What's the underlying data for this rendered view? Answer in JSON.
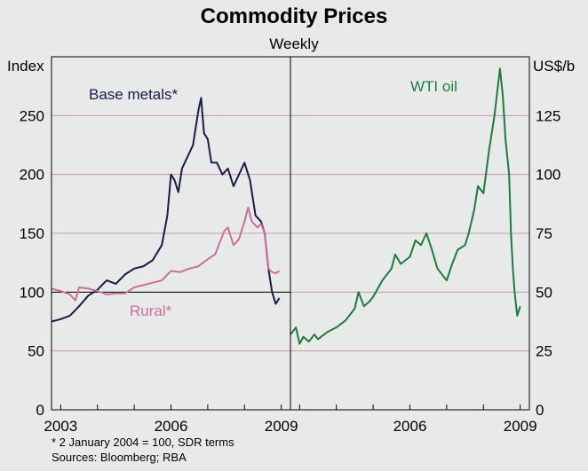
{
  "chart_data": {
    "type": "line",
    "title": "Commodity Prices",
    "subtitle": "Weekly",
    "panels": [
      {
        "name": "left",
        "y_axis_label": "Index",
        "ylim": [
          0,
          300
        ],
        "yticks": [
          0,
          50,
          100,
          150,
          200,
          250
        ],
        "x_ticks": [
          "2003",
          "2006",
          "2009"
        ],
        "xlim": [
          2002.75,
          2009.25
        ],
        "reference_line": 100,
        "series": [
          {
            "name": "Base metals*",
            "color": "#1c1a47",
            "x": [
              2002.75,
              2003.0,
              2003.25,
              2003.5,
              2003.75,
              2004.0,
              2004.25,
              2004.5,
              2004.75,
              2005.0,
              2005.25,
              2005.5,
              2005.75,
              2005.9,
              2006.0,
              2006.1,
              2006.2,
              2006.3,
              2006.45,
              2006.6,
              2006.75,
              2006.82,
              2006.9,
              2007.0,
              2007.1,
              2007.25,
              2007.4,
              2007.55,
              2007.7,
              2007.85,
              2008.0,
              2008.15,
              2008.3,
              2008.45,
              2008.55,
              2008.65,
              2008.75,
              2008.85,
              2008.95
            ],
            "values": [
              75,
              77,
              80,
              88,
              97,
              102,
              110,
              107,
              115,
              120,
              122,
              127,
              140,
              165,
              200,
              195,
              185,
              205,
              215,
              225,
              255,
              265,
              235,
              230,
              210,
              210,
              200,
              205,
              190,
              200,
              210,
              195,
              165,
              160,
              150,
              120,
              100,
              90,
              95
            ]
          },
          {
            "name": "Rural*",
            "color": "#c7729a",
            "x": [
              2002.75,
              2003.0,
              2003.25,
              2003.4,
              2003.5,
              2003.75,
              2004.0,
              2004.25,
              2004.5,
              2004.75,
              2005.0,
              2005.25,
              2005.5,
              2005.75,
              2006.0,
              2006.25,
              2006.5,
              2006.75,
              2007.0,
              2007.2,
              2007.3,
              2007.45,
              2007.55,
              2007.7,
              2007.85,
              2008.0,
              2008.1,
              2008.2,
              2008.35,
              2008.45,
              2008.55,
              2008.65,
              2008.75,
              2008.85,
              2008.95
            ],
            "values": [
              103,
              101,
              98,
              93,
              104,
              103,
              101,
              98,
              99,
              99,
              104,
              106,
              108,
              110,
              118,
              117,
              120,
              122,
              128,
              132,
              140,
              152,
              155,
              140,
              145,
              160,
              172,
              160,
              155,
              158,
              150,
              120,
              117,
              116,
              118
            ]
          }
        ],
        "annotations": [
          "Base metals*",
          "Rural*"
        ]
      },
      {
        "name": "right",
        "y_axis_label": "US$/b",
        "ylim": [
          0,
          150
        ],
        "yticks": [
          0,
          25,
          50,
          75,
          100,
          125
        ],
        "x_ticks": [
          "2006",
          "2009"
        ],
        "xlim": [
          2002.75,
          2009.25
        ],
        "series": [
          {
            "name": "WTI oil",
            "color": "#1f7b3d",
            "x": [
              2002.75,
              2002.9,
              2003.0,
              2003.1,
              2003.25,
              2003.4,
              2003.5,
              2003.75,
              2004.0,
              2004.25,
              2004.5,
              2004.6,
              2004.75,
              2004.9,
              2005.0,
              2005.25,
              2005.5,
              2005.6,
              2005.75,
              2006.0,
              2006.15,
              2006.3,
              2006.45,
              2006.6,
              2006.75,
              2006.9,
              2007.0,
              2007.15,
              2007.3,
              2007.5,
              2007.6,
              2007.75,
              2007.85,
              2008.0,
              2008.15,
              2008.3,
              2008.45,
              2008.53,
              2008.6,
              2008.7,
              2008.75,
              2008.8,
              2008.85,
              2008.92,
              2009.0
            ],
            "values": [
              32,
              35,
              28,
              31,
              29,
              32,
              30,
              33,
              35,
              38,
              43,
              50,
              44,
              46,
              48,
              55,
              60,
              66,
              62,
              65,
              72,
              70,
              75,
              68,
              60,
              57,
              55,
              62,
              68,
              70,
              75,
              85,
              95,
              92,
              110,
              125,
              145,
              133,
              115,
              100,
              75,
              60,
              50,
              40,
              44
            ]
          }
        ],
        "annotations": [
          "WTI oil"
        ]
      }
    ],
    "footnotes": [
      "*    2 January 2004 = 100, SDR terms",
      "Sources: Bloomberg; RBA"
    ]
  }
}
